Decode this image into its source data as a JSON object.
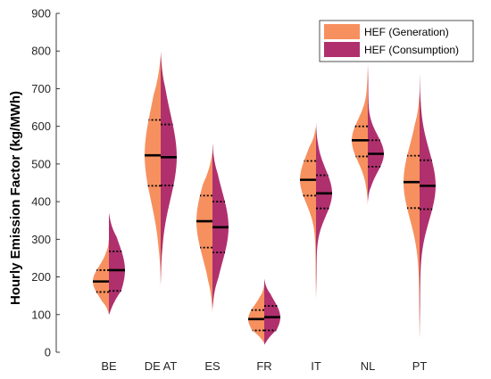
{
  "colors": {
    "generation": "#F7905F",
    "consumption": "#B0306E",
    "axis": "#262626",
    "median": "#000000"
  },
  "chart_data": {
    "type": "violin",
    "ylabel": "Hourly Emission Factor (kg/MWh)",
    "ylim": [
      0,
      900
    ],
    "yticks": [
      0,
      100,
      200,
      300,
      400,
      500,
      600,
      700,
      800,
      900
    ],
    "categories": [
      "BE",
      "DE AT",
      "ES",
      "FR",
      "IT",
      "NL",
      "PT"
    ],
    "legend": {
      "placement": "top-right",
      "entries": [
        "HEF (Generation)",
        "HEF (Consumption)"
      ]
    },
    "series": [
      {
        "name": "HEF (Generation)",
        "side": "left",
        "stats": [
          {
            "min": 100,
            "max": 300,
            "q1": 160,
            "median": 188,
            "q3": 218
          },
          {
            "min": 175,
            "max": 790,
            "q1": 442,
            "median": 523,
            "q3": 617
          },
          {
            "min": 105,
            "max": 530,
            "q1": 278,
            "median": 348,
            "q3": 416
          },
          {
            "min": 25,
            "max": 180,
            "q1": 58,
            "median": 88,
            "q3": 112
          },
          {
            "min": 140,
            "max": 600,
            "q1": 416,
            "median": 458,
            "q3": 508
          },
          {
            "min": 390,
            "max": 760,
            "q1": 520,
            "median": 563,
            "q3": 600
          },
          {
            "min": 35,
            "max": 690,
            "q1": 383,
            "median": 452,
            "q3": 522
          }
        ]
      },
      {
        "name": "HEF (Consumption)",
        "side": "right",
        "stats": [
          {
            "min": 100,
            "max": 370,
            "q1": 163,
            "median": 218,
            "q3": 268
          },
          {
            "min": 180,
            "max": 800,
            "q1": 443,
            "median": 518,
            "q3": 605
          },
          {
            "min": 115,
            "max": 555,
            "q1": 265,
            "median": 332,
            "q3": 400
          },
          {
            "min": 20,
            "max": 195,
            "q1": 58,
            "median": 93,
            "q3": 123
          },
          {
            "min": 150,
            "max": 610,
            "q1": 382,
            "median": 422,
            "q3": 470
          },
          {
            "min": 400,
            "max": 765,
            "q1": 493,
            "median": 527,
            "q3": 563
          },
          {
            "min": 40,
            "max": 740,
            "q1": 380,
            "median": 442,
            "q3": 510
          }
        ]
      }
    ]
  }
}
